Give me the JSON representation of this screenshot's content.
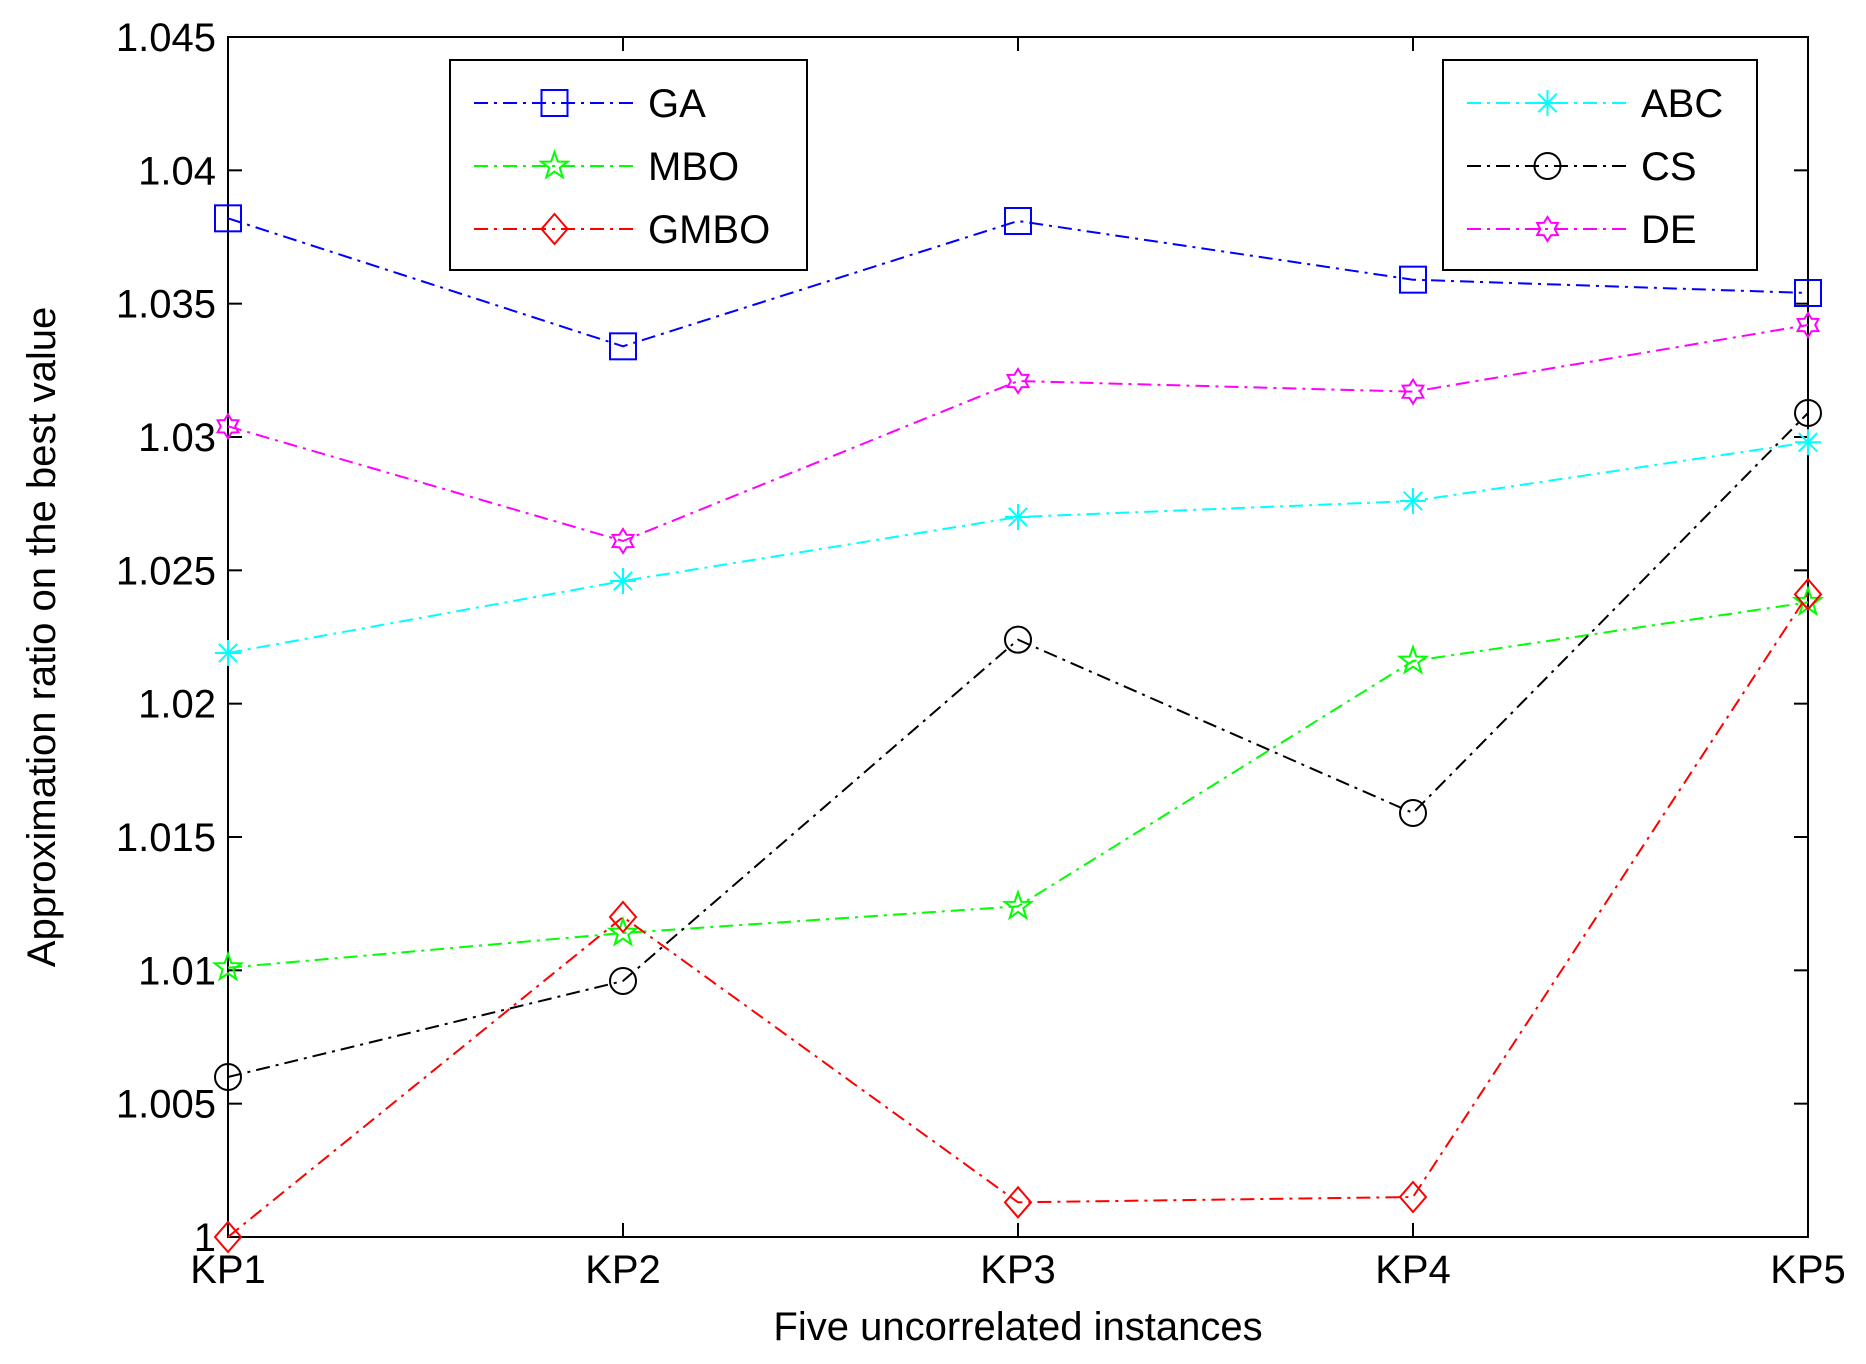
{
  "chart_data": {
    "type": "line",
    "title": "",
    "xlabel": "Five uncorrelated instances",
    "ylabel": "Approximation ratio on the best value",
    "categories": [
      "KP1",
      "KP2",
      "KP3",
      "KP4",
      "KP5"
    ],
    "ylim": [
      1,
      1.045
    ],
    "yticks": [
      1,
      1.005,
      1.01,
      1.015,
      1.02,
      1.025,
      1.03,
      1.035,
      1.04,
      1.045
    ],
    "ytick_labels": [
      "1",
      "1.005",
      "1.01",
      "1.015",
      "1.02",
      "1.025",
      "1.03",
      "1.035",
      "1.04",
      "1.045"
    ],
    "grid": false,
    "series": [
      {
        "name": "GA",
        "color": "#0000ff",
        "marker": "square",
        "values": [
          1.0382,
          1.0334,
          1.0381,
          1.0359,
          1.0354
        ]
      },
      {
        "name": "MBO",
        "color": "#00ff00",
        "marker": "pentagram",
        "values": [
          1.0101,
          1.0114,
          1.0124,
          1.0216,
          1.0238
        ]
      },
      {
        "name": "GMBO",
        "color": "#ff0000",
        "marker": "diamond",
        "values": [
          1.0,
          1.012,
          1.0013,
          1.0015,
          1.0241
        ]
      },
      {
        "name": "ABC",
        "color": "#00ffff",
        "marker": "asterisk",
        "values": [
          1.0219,
          1.0246,
          1.027,
          1.0276,
          1.0298
        ]
      },
      {
        "name": "CS",
        "color": "#000000",
        "marker": "circle",
        "values": [
          1.006,
          1.0096,
          1.0224,
          1.0159,
          1.0309
        ]
      },
      {
        "name": "DE",
        "color": "#ff00ff",
        "marker": "hexagram",
        "values": [
          1.0304,
          1.0261,
          1.0321,
          1.0317,
          1.0342
        ]
      }
    ],
    "legends": [
      {
        "position": "top-left",
        "entries": [
          "GA",
          "MBO",
          "GMBO"
        ]
      },
      {
        "position": "top-right",
        "entries": [
          "ABC",
          "CS",
          "DE"
        ]
      }
    ]
  }
}
